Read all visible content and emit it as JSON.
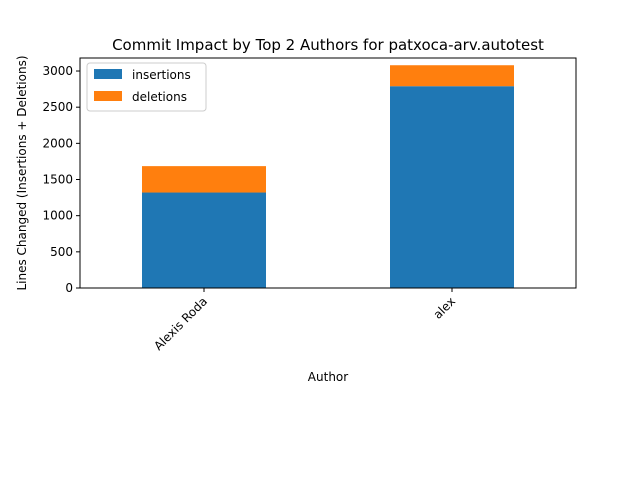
{
  "chart_data": {
    "type": "bar",
    "stacked": true,
    "title": "Commit Impact by Top 2 Authors for patxoca-arv.autotest",
    "xlabel": "Author",
    "ylabel": "Lines Changed (Insertions + Deletions)",
    "categories": [
      "Alexis Roda",
      "alex"
    ],
    "series": [
      {
        "name": "insertions",
        "color": "#1f77b4",
        "values": [
          1320,
          2790
        ]
      },
      {
        "name": "deletions",
        "color": "#ff7f0e",
        "values": [
          365,
          290
        ]
      }
    ],
    "ylim": [
      0,
      3180
    ],
    "yticks": [
      0,
      500,
      1000,
      1500,
      2000,
      2500,
      3000
    ],
    "ytick_labels": [
      "0",
      "500",
      "1000",
      "1500",
      "2000",
      "2500",
      "3000"
    ],
    "legend_position": "top-left",
    "grid": false
  }
}
